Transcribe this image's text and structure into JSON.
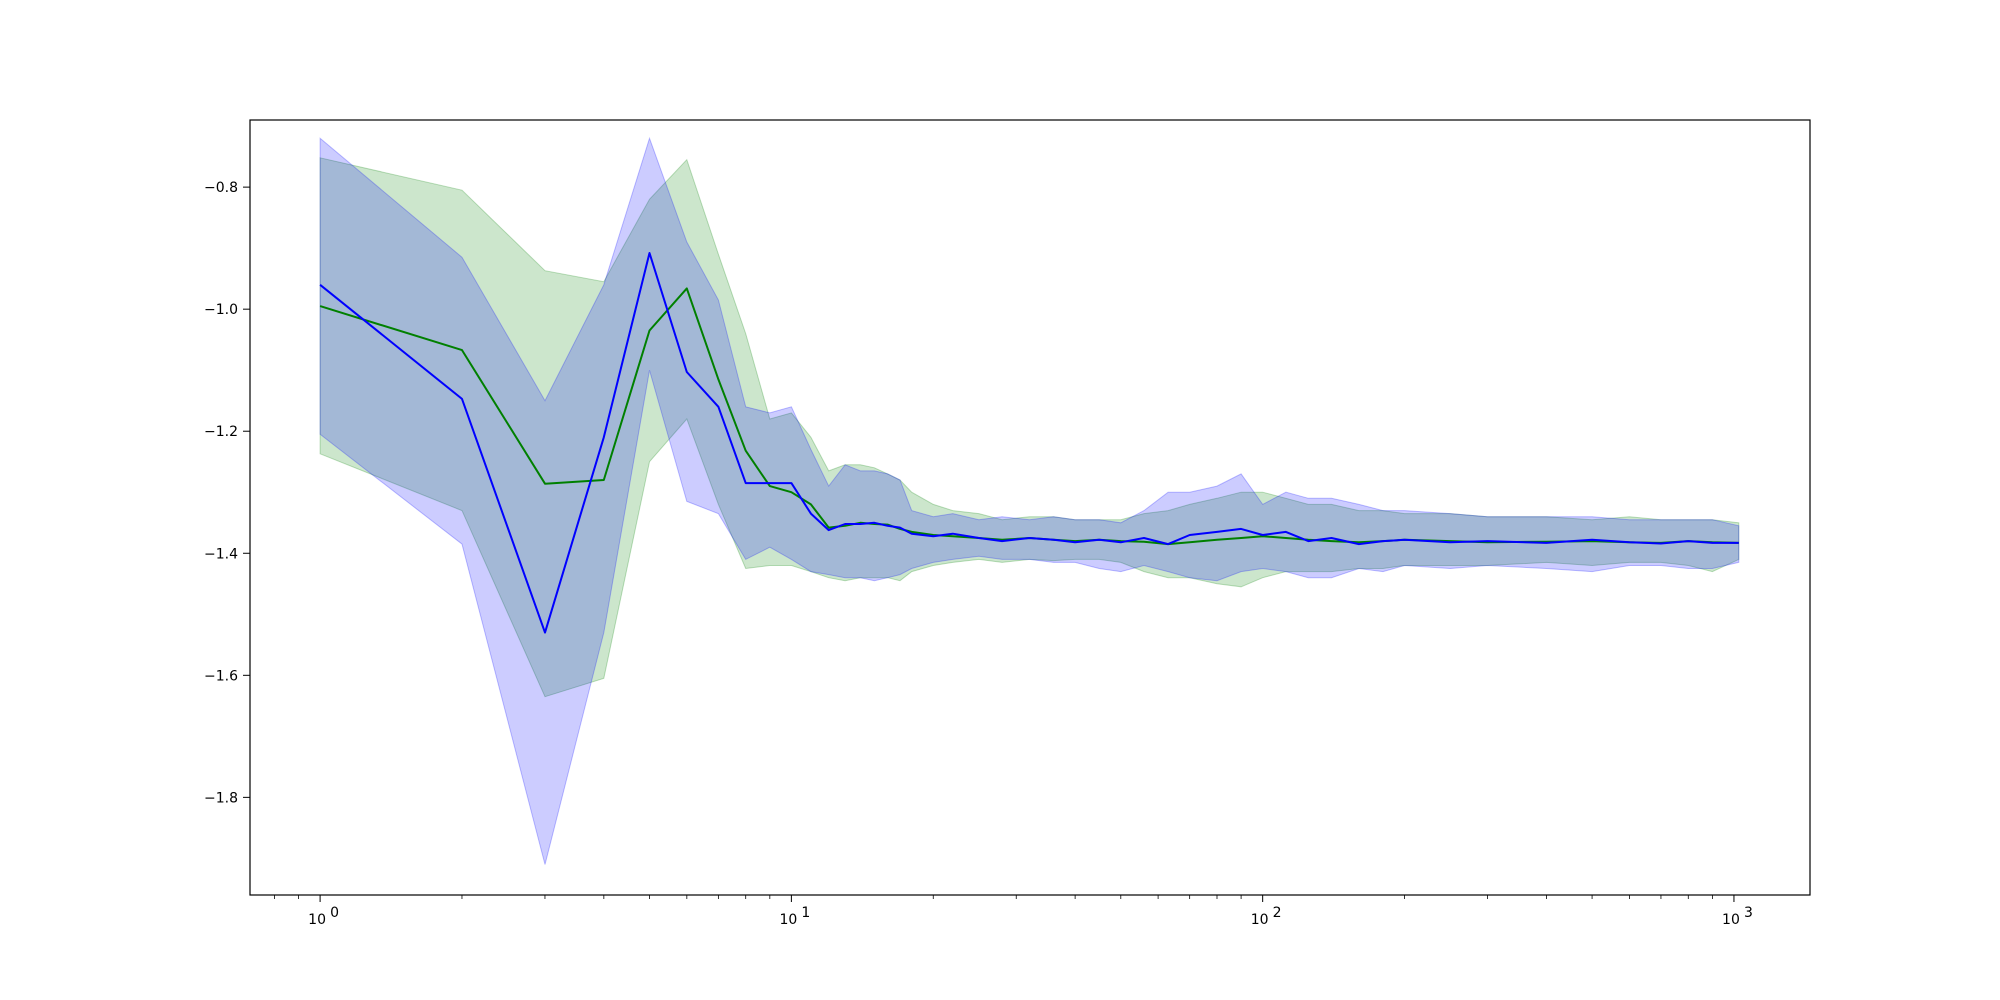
{
  "chart_data": {
    "type": "line",
    "title": "",
    "xlabel": "",
    "ylabel": "",
    "xscale": "log",
    "xlim": [
      0.71,
      1450
    ],
    "ylim": [
      -1.96,
      -0.69
    ],
    "grid": false,
    "x_ticks": [
      {
        "value": 1,
        "label": "10",
        "exp": "0"
      },
      {
        "value": 10,
        "label": "10",
        "exp": "1"
      },
      {
        "value": 100,
        "label": "10",
        "exp": "2"
      },
      {
        "value": 1000,
        "label": "10",
        "exp": "3"
      }
    ],
    "y_ticks": [
      {
        "value": -0.8,
        "label": "−0.8"
      },
      {
        "value": -1.0,
        "label": "−1.0"
      },
      {
        "value": -1.2,
        "label": "−1.2"
      },
      {
        "value": -1.4,
        "label": "−1.4"
      },
      {
        "value": -1.6,
        "label": "−1.6"
      },
      {
        "value": -1.8,
        "label": "−1.8"
      }
    ],
    "series": [
      {
        "color": "#008000",
        "band_color": "#008000",
        "band_opacity": 0.2,
        "x": [
          1,
          2,
          3,
          4,
          5,
          6,
          7,
          8,
          9,
          10,
          11,
          12,
          13,
          14,
          15,
          16,
          17,
          18,
          20,
          22,
          25,
          28,
          32,
          36,
          40,
          45,
          50,
          56,
          63,
          70,
          80,
          90,
          100,
          112,
          125,
          140,
          160,
          180,
          200,
          250,
          300,
          400,
          500,
          600,
          700,
          800,
          900,
          1024
        ],
        "values": [
          -0.995,
          -1.067,
          -1.286,
          -1.28,
          -1.035,
          -0.966,
          -1.115,
          -1.232,
          -1.29,
          -1.3,
          -1.32,
          -1.358,
          -1.355,
          -1.35,
          -1.352,
          -1.353,
          -1.36,
          -1.365,
          -1.37,
          -1.372,
          -1.375,
          -1.378,
          -1.375,
          -1.378,
          -1.38,
          -1.378,
          -1.38,
          -1.381,
          -1.385,
          -1.382,
          -1.378,
          -1.375,
          -1.372,
          -1.375,
          -1.378,
          -1.38,
          -1.382,
          -1.38,
          -1.378,
          -1.38,
          -1.382,
          -1.381,
          -1.38,
          -1.382,
          -1.383,
          -1.38,
          -1.382,
          -1.383
        ],
        "lower": [
          -1.237,
          -1.33,
          -1.635,
          -1.605,
          -1.25,
          -1.18,
          -1.32,
          -1.425,
          -1.42,
          -1.42,
          -1.43,
          -1.44,
          -1.445,
          -1.44,
          -1.44,
          -1.44,
          -1.445,
          -1.43,
          -1.42,
          -1.415,
          -1.41,
          -1.415,
          -1.41,
          -1.412,
          -1.41,
          -1.41,
          -1.415,
          -1.43,
          -1.44,
          -1.44,
          -1.45,
          -1.455,
          -1.44,
          -1.43,
          -1.43,
          -1.43,
          -1.425,
          -1.425,
          -1.42,
          -1.42,
          -1.42,
          -1.415,
          -1.42,
          -1.415,
          -1.415,
          -1.42,
          -1.43,
          -1.41
        ],
        "upper": [
          -0.752,
          -0.805,
          -0.937,
          -0.955,
          -0.82,
          -0.755,
          -0.91,
          -1.04,
          -1.18,
          -1.17,
          -1.21,
          -1.265,
          -1.255,
          -1.255,
          -1.26,
          -1.27,
          -1.28,
          -1.3,
          -1.32,
          -1.33,
          -1.335,
          -1.345,
          -1.34,
          -1.34,
          -1.345,
          -1.345,
          -1.345,
          -1.335,
          -1.33,
          -1.32,
          -1.31,
          -1.3,
          -1.3,
          -1.31,
          -1.32,
          -1.32,
          -1.33,
          -1.33,
          -1.335,
          -1.335,
          -1.34,
          -1.34,
          -1.345,
          -1.34,
          -1.345,
          -1.345,
          -1.345,
          -1.35
        ]
      },
      {
        "color": "#0000ff",
        "band_color": "#0000ff",
        "band_opacity": 0.2,
        "x": [
          1,
          2,
          3,
          4,
          5,
          6,
          7,
          8,
          9,
          10,
          11,
          12,
          13,
          14,
          15,
          16,
          17,
          18,
          20,
          22,
          25,
          28,
          32,
          36,
          40,
          45,
          50,
          56,
          63,
          70,
          80,
          90,
          100,
          112,
          125,
          140,
          160,
          180,
          200,
          250,
          300,
          400,
          500,
          600,
          700,
          800,
          900,
          1024
        ],
        "values": [
          -0.96,
          -1.147,
          -1.53,
          -1.21,
          -0.908,
          -1.103,
          -1.16,
          -1.285,
          -1.285,
          -1.285,
          -1.335,
          -1.362,
          -1.352,
          -1.352,
          -1.35,
          -1.355,
          -1.358,
          -1.368,
          -1.372,
          -1.368,
          -1.375,
          -1.38,
          -1.375,
          -1.378,
          -1.382,
          -1.378,
          -1.382,
          -1.375,
          -1.385,
          -1.37,
          -1.365,
          -1.36,
          -1.37,
          -1.365,
          -1.38,
          -1.375,
          -1.385,
          -1.38,
          -1.378,
          -1.382,
          -1.38,
          -1.383,
          -1.378,
          -1.382,
          -1.384,
          -1.38,
          -1.383,
          -1.383
        ],
        "lower": [
          -1.205,
          -1.385,
          -1.91,
          -1.53,
          -1.1,
          -1.315,
          -1.335,
          -1.41,
          -1.39,
          -1.41,
          -1.43,
          -1.435,
          -1.44,
          -1.44,
          -1.445,
          -1.44,
          -1.435,
          -1.425,
          -1.415,
          -1.41,
          -1.405,
          -1.41,
          -1.41,
          -1.415,
          -1.415,
          -1.425,
          -1.43,
          -1.42,
          -1.43,
          -1.44,
          -1.445,
          -1.43,
          -1.425,
          -1.43,
          -1.44,
          -1.44,
          -1.425,
          -1.43,
          -1.42,
          -1.425,
          -1.42,
          -1.425,
          -1.43,
          -1.42,
          -1.42,
          -1.425,
          -1.425,
          -1.415
        ],
        "upper": [
          -0.72,
          -0.915,
          -1.15,
          -0.96,
          -0.72,
          -0.89,
          -0.985,
          -1.16,
          -1.17,
          -1.16,
          -1.23,
          -1.29,
          -1.255,
          -1.265,
          -1.265,
          -1.27,
          -1.28,
          -1.33,
          -1.34,
          -1.335,
          -1.345,
          -1.34,
          -1.345,
          -1.34,
          -1.345,
          -1.345,
          -1.35,
          -1.33,
          -1.3,
          -1.3,
          -1.29,
          -1.27,
          -1.32,
          -1.3,
          -1.31,
          -1.31,
          -1.32,
          -1.33,
          -1.33,
          -1.335,
          -1.34,
          -1.34,
          -1.34,
          -1.345,
          -1.345,
          -1.345,
          -1.345,
          -1.355
        ]
      }
    ]
  }
}
